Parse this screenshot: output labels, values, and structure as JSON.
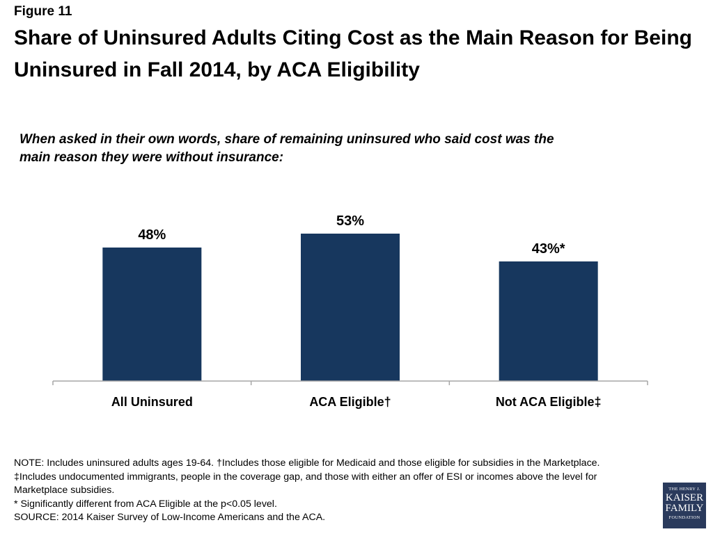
{
  "header": {
    "figure_label": "Figure 11",
    "title": "Share of Uninsured Adults Citing Cost as the Main Reason for Being Uninsured in Fall 2014, by ACA Eligibility",
    "subtitle": "When asked in their own words, share of remaining uninsured who said cost was the main reason they were without insurance:"
  },
  "chart_data": {
    "type": "bar",
    "categories": [
      "All Uninsured",
      "ACA Eligible†",
      "Not ACA Eligible‡"
    ],
    "values": [
      48,
      53,
      43
    ],
    "data_labels": [
      "48%",
      "53%",
      "43%*"
    ],
    "ylim": [
      0,
      80
    ],
    "grid": false,
    "legend": "none",
    "bar_color": "#17375e"
  },
  "notes": {
    "line1": "NOTE: Includes uninsured adults ages 19-64.  †Includes those eligible for Medicaid and those eligible for subsidies in the Marketplace. ‡Includes undocumented immigrants, people in the coverage gap, and those with either an offer of ESI or incomes above the level for Marketplace subsidies.",
    "line2": "* Significantly different from ACA Eligible at the p<0.05 level.",
    "line3": "SOURCE: 2014 Kaiser Survey of Low-Income Americans and the ACA."
  },
  "logo": {
    "line1": "THE HENRY J.",
    "line2": "KAISER",
    "line3": "FAMILY",
    "line4": "FOUNDATION"
  }
}
